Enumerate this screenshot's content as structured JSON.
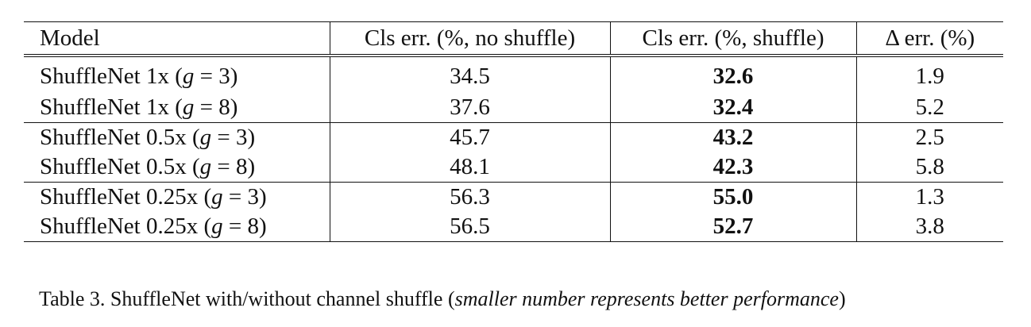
{
  "table": {
    "headers": [
      "Model",
      "Cls err. (%, no shuffle)",
      "Cls err. (%, shuffle)",
      "Δ err. (%)"
    ],
    "rows": [
      {
        "model_prefix": "ShuffleNet 1x (",
        "g": "g",
        "eq": " = 3)",
        "no_shuffle": "34.5",
        "shuffle": "32.6",
        "delta": "1.9"
      },
      {
        "model_prefix": "ShuffleNet 1x (",
        "g": "g",
        "eq": " = 8)",
        "no_shuffle": "37.6",
        "shuffle": "32.4",
        "delta": "5.2"
      },
      {
        "model_prefix": "ShuffleNet 0.5x (",
        "g": "g",
        "eq": " = 3)",
        "no_shuffle": "45.7",
        "shuffle": "43.2",
        "delta": "2.5"
      },
      {
        "model_prefix": "ShuffleNet 0.5x (",
        "g": "g",
        "eq": " = 8)",
        "no_shuffle": "48.1",
        "shuffle": "42.3",
        "delta": "5.8"
      },
      {
        "model_prefix": "ShuffleNet 0.25x (",
        "g": "g",
        "eq": " = 3)",
        "no_shuffle": "56.3",
        "shuffle": "55.0",
        "delta": "1.3"
      },
      {
        "model_prefix": "ShuffleNet 0.25x (",
        "g": "g",
        "eq": " = 8)",
        "no_shuffle": "56.5",
        "shuffle": "52.7",
        "delta": "3.8"
      }
    ]
  },
  "caption": {
    "prefix": "Table 3. ShuffleNet with/without channel shuffle (",
    "italic": "smaller number represents better performance",
    "suffix": ")"
  }
}
